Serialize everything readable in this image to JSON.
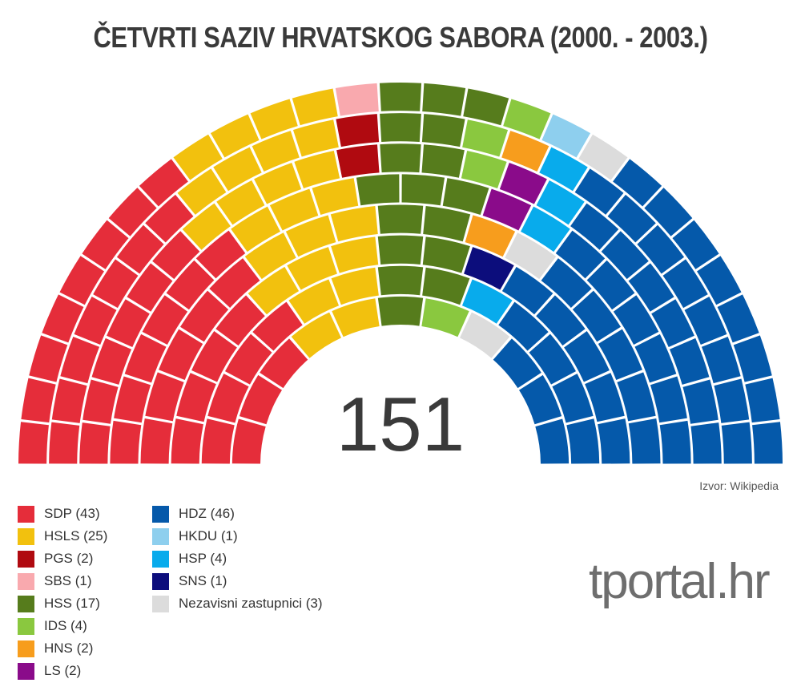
{
  "chart_data": {
    "type": "parliament",
    "title": "ČETVRTI SAZIV HRVATSKOG SABORA (2000. - 2003.)",
    "total_seats": "151",
    "source": "Izvor: Wikipedia",
    "series": [
      {
        "name": "SDP (43)",
        "seats": 43,
        "color": "#e52d3a"
      },
      {
        "name": "HSLS (25)",
        "seats": 25,
        "color": "#f2c10e"
      },
      {
        "name": "PGS (2)",
        "seats": 2,
        "color": "#b00a10"
      },
      {
        "name": "SBS (1)",
        "seats": 1,
        "color": "#f9a9ae"
      },
      {
        "name": "HSS (17)",
        "seats": 17,
        "color": "#567c1c"
      },
      {
        "name": "IDS (4)",
        "seats": 4,
        "color": "#8ac83f"
      },
      {
        "name": "HNS (2)",
        "seats": 2,
        "color": "#f79d1d"
      },
      {
        "name": "LS (2)",
        "seats": 2,
        "color": "#8a0b8a"
      },
      {
        "name": "SNS (1)",
        "seats": 1,
        "color": "#0c0d7c"
      },
      {
        "name": "HKDU (1)",
        "seats": 1,
        "color": "#8ecfee"
      },
      {
        "name": "HSP (4)",
        "seats": 4,
        "color": "#08abec"
      },
      {
        "name": "Nezavisni zastupnici (3)",
        "seats": 3,
        "color": "#dcdcdc"
      },
      {
        "name": "HDZ (46)",
        "seats": 46,
        "color": "#0559aa"
      }
    ],
    "legend_columns": [
      [
        "SDP (43)",
        "HSLS (25)",
        "PGS (2)",
        "SBS (1)",
        "HSS (17)",
        "IDS (4)",
        "HNS (2)",
        "LS (2)"
      ],
      [
        "HDZ (46)",
        "HKDU (1)",
        "HSP (4)",
        "SNS (1)",
        "Nezavisni zastupnici (3)"
      ]
    ],
    "legend_placement": "bottom-left"
  },
  "brand": {
    "logo_text": "tportal.hr"
  }
}
